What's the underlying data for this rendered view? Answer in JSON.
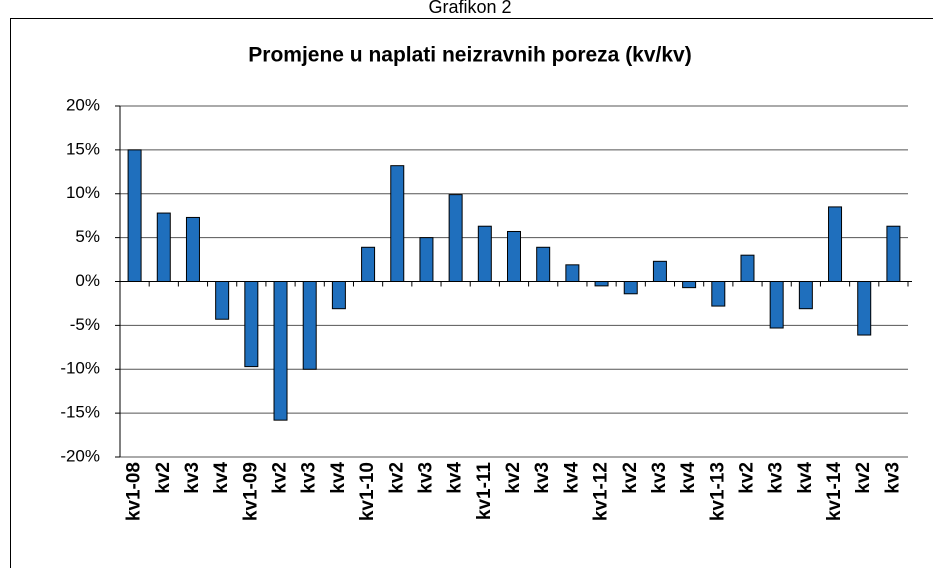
{
  "caption": "Grafikon 2",
  "chart_data": {
    "type": "bar",
    "title": "Promjene u naplati neizravnih poreza (kv/kv)",
    "categories": [
      "kv1-08",
      "kv2",
      "kv3",
      "kv4",
      "kv1-09",
      "kv2",
      "kv3",
      "kv4",
      "kv1-10",
      "kv2",
      "kv3",
      "kv4",
      "kv1-11",
      "kv2",
      "kv3",
      "kv4",
      "kv1-12",
      "kv2",
      "kv3",
      "kv4",
      "kv1-13",
      "kv2",
      "kv3",
      "kv4",
      "kv1-14",
      "kv2",
      "kv3"
    ],
    "values": [
      15,
      7.8,
      7.3,
      -4.3,
      -9.7,
      -15.8,
      -10,
      -3.1,
      3.9,
      13.2,
      5,
      9.9,
      6.3,
      5.7,
      3.9,
      1.9,
      -0.5,
      -1.4,
      2.3,
      -0.7,
      -2.8,
      3,
      -5.3,
      -3.1,
      8.5,
      -6.1,
      6.3
    ],
    "color": "#1f6fbd",
    "ylim": [
      -20,
      20
    ],
    "yticks": [
      {
        "value": -20,
        "label": "-20%"
      },
      {
        "value": -15,
        "label": "-15%"
      },
      {
        "value": -10,
        "label": "-10%"
      },
      {
        "value": -5,
        "label": "-5%"
      },
      {
        "value": 0,
        "label": "0%"
      },
      {
        "value": 5,
        "label": "5%"
      },
      {
        "value": 10,
        "label": "10%"
      },
      {
        "value": 15,
        "label": "15%"
      },
      {
        "value": 20,
        "label": "20%"
      }
    ],
    "grid": true
  }
}
